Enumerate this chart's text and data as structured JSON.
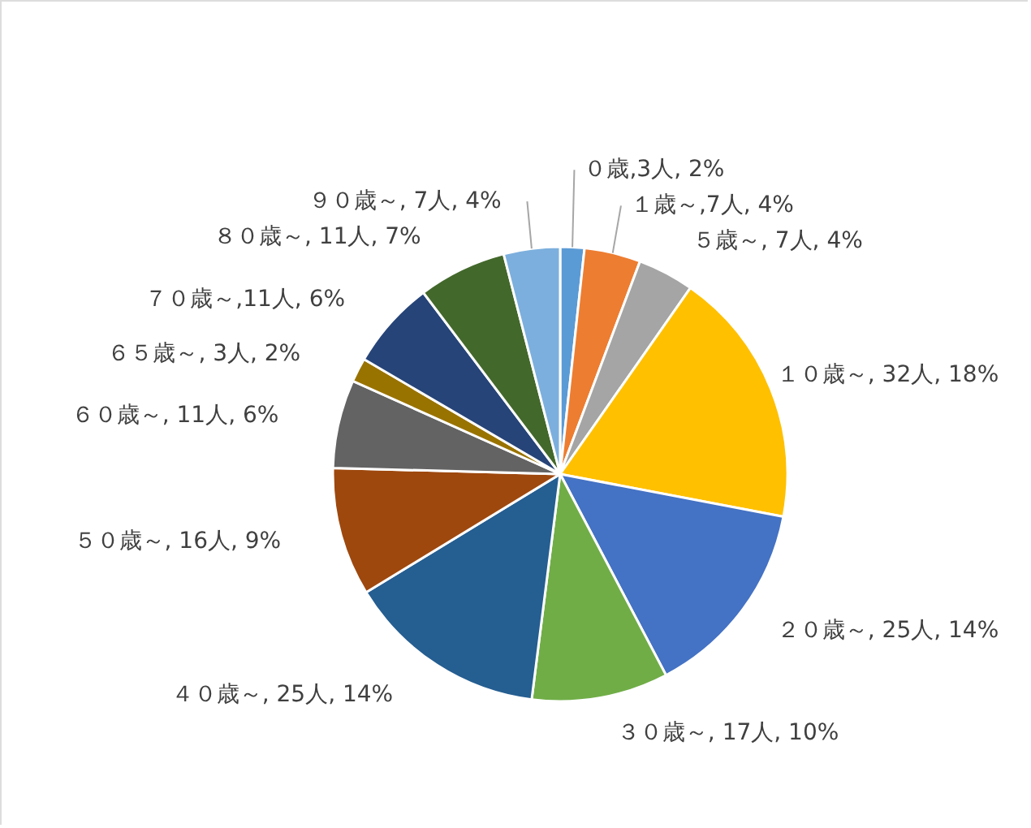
{
  "chart_data": {
    "type": "pie",
    "categories": [
      "０歳",
      "１歳～",
      "５歳～",
      "１０歳～",
      "２０歳～",
      "３０歳～",
      "４０歳～",
      "５０歳～",
      "６０歳～",
      "６５歳～",
      "７０歳～",
      "８０歳～",
      "９０歳～"
    ],
    "values": [
      3,
      7,
      7,
      32,
      25,
      17,
      25,
      16,
      11,
      3,
      11,
      11,
      7
    ],
    "colors": [
      "#5b9bd5",
      "#ed7d31",
      "#a5a5a5",
      "#ffc000",
      "#4472c4",
      "#70ad47",
      "#255e91",
      "#9e480e",
      "#636363",
      "#997300",
      "#264478",
      "#43682b",
      "#7cafdd"
    ],
    "value_labels": [
      ",3人, 2%",
      ",7人, 4%",
      ", 7人, 4%",
      ", 32人, 18%",
      ", 25人, 14%",
      ", 17人, 10%",
      ", 25人, 14%",
      ", 16人, 9%",
      ", 11人, 6%",
      ", 3人, 2%",
      ",11人, 6%",
      ", 11人, 7%",
      ", 7人, 4%"
    ]
  }
}
